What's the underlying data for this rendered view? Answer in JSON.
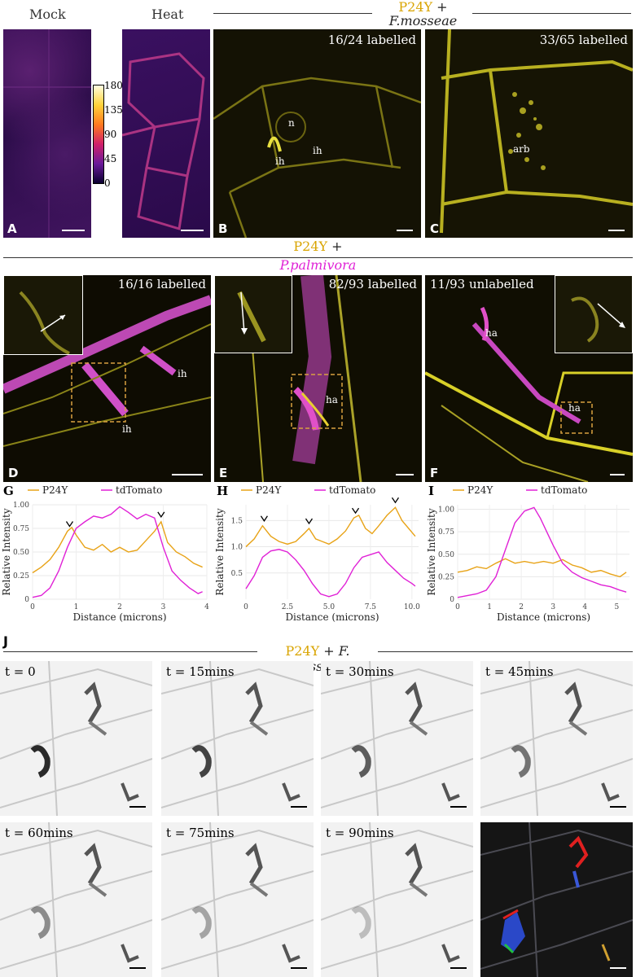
{
  "headers": {
    "mock": "Mock",
    "heat": "Heat",
    "top_p24y": "P24Y",
    "top_plus": " +",
    "top_fungus": "F.mosseae",
    "mid_p24y": "P24Y",
    "mid_plus": " +",
    "mid_oomycete": "P.palmivora",
    "j_p24y": "P24Y",
    "j_plus": " + ",
    "j_fungus": "F. mosseae"
  },
  "colorbar": {
    "ticks": [
      "180",
      "135",
      "90",
      "45",
      "0"
    ]
  },
  "panels": {
    "A": {
      "letter": "A"
    },
    "B": {
      "letter": "B",
      "count": "16/24 labelled",
      "labels": [
        "n",
        "ih",
        "ih"
      ]
    },
    "C": {
      "letter": "C",
      "count": "33/65 labelled",
      "labels": [
        "arb"
      ]
    },
    "D": {
      "letter": "D",
      "count": "16/16 labelled",
      "labels": [
        "ih",
        "ih"
      ]
    },
    "E": {
      "letter": "E",
      "count": "82/93 labelled",
      "labels": [
        "ha"
      ]
    },
    "F": {
      "letter": "F",
      "count": "11/93 unlabelled",
      "labels": [
        "ha",
        "ha"
      ]
    },
    "J": {
      "letter": "J"
    }
  },
  "timelapse": [
    "t = 0",
    "t = 15mins",
    "t = 30mins",
    "t = 45mins",
    "t = 60mins",
    "t = 75mins",
    "t = 90mins"
  ],
  "colors": {
    "p24y": "#e8a317",
    "tdtomato": "#e021d6",
    "yellow_fluor": "#d8d020",
    "magenta_fluor": "#d030c8"
  },
  "chart_data": [
    {
      "panel": "G",
      "type": "line",
      "xlabel": "Distance (microns)",
      "ylabel": "Relative Intensity",
      "xlim": [
        0,
        4
      ],
      "ylim": [
        0,
        1
      ],
      "xticks": [
        0,
        1,
        2,
        3,
        4
      ],
      "yticks": [
        0,
        0.25,
        0.5,
        0.75,
        1.0
      ],
      "ytick_labels": [
        "0",
        "0.25",
        "0.50",
        "0.75",
        "1.00"
      ],
      "peak_markers": [
        0.85,
        2.95
      ],
      "series": [
        {
          "name": "P24Y",
          "color": "#e8a317",
          "x": [
            0,
            0.2,
            0.4,
            0.6,
            0.8,
            0.9,
            1.0,
            1.2,
            1.4,
            1.6,
            1.8,
            2.0,
            2.2,
            2.4,
            2.6,
            2.8,
            2.95,
            3.1,
            3.3,
            3.5,
            3.7,
            3.9
          ],
          "y": [
            0.28,
            0.34,
            0.42,
            0.55,
            0.72,
            0.76,
            0.68,
            0.55,
            0.52,
            0.58,
            0.5,
            0.55,
            0.5,
            0.52,
            0.62,
            0.72,
            0.82,
            0.6,
            0.5,
            0.45,
            0.38,
            0.34
          ]
        },
        {
          "name": "tdTomato",
          "color": "#e021d6",
          "x": [
            0,
            0.2,
            0.4,
            0.6,
            0.8,
            1.0,
            1.2,
            1.4,
            1.6,
            1.8,
            2.0,
            2.2,
            2.4,
            2.6,
            2.8,
            3.0,
            3.2,
            3.4,
            3.6,
            3.8,
            3.9
          ],
          "y": [
            0.02,
            0.04,
            0.12,
            0.3,
            0.55,
            0.75,
            0.82,
            0.88,
            0.86,
            0.9,
            0.98,
            0.92,
            0.85,
            0.9,
            0.86,
            0.55,
            0.3,
            0.2,
            0.12,
            0.06,
            0.08
          ]
        }
      ]
    },
    {
      "panel": "H",
      "type": "line",
      "xlabel": "Distance (microns)",
      "ylabel": "Relative Intensity",
      "xlim": [
        0,
        10.4
      ],
      "ylim": [
        0,
        1.8
      ],
      "xticks": [
        0,
        2.5,
        5,
        7.5,
        10
      ],
      "xtick_labels": [
        "0",
        "2.5",
        "5.0",
        "7.5",
        "10.0"
      ],
      "yticks": [
        0.5,
        1.0,
        1.5
      ],
      "ytick_labels": [
        "0.5",
        "1.0",
        "1.5"
      ],
      "peak_markers": [
        1.1,
        3.8,
        6.6,
        9.0
      ],
      "series": [
        {
          "name": "P24Y",
          "color": "#e8a317",
          "x": [
            0,
            0.5,
            1.0,
            1.5,
            2.0,
            2.5,
            3.0,
            3.5,
            3.8,
            4.2,
            4.6,
            5.0,
            5.5,
            6.0,
            6.5,
            6.8,
            7.2,
            7.6,
            8.0,
            8.5,
            9.0,
            9.4,
            9.8,
            10.2
          ],
          "y": [
            1.0,
            1.15,
            1.4,
            1.2,
            1.1,
            1.05,
            1.1,
            1.25,
            1.35,
            1.15,
            1.1,
            1.05,
            1.15,
            1.3,
            1.55,
            1.6,
            1.35,
            1.25,
            1.4,
            1.6,
            1.75,
            1.5,
            1.35,
            1.2
          ]
        },
        {
          "name": "tdTomato",
          "color": "#e021d6",
          "x": [
            0,
            0.5,
            1.0,
            1.5,
            2.0,
            2.5,
            3.0,
            3.5,
            4.0,
            4.5,
            5.0,
            5.5,
            6.0,
            6.5,
            7.0,
            7.5,
            8.0,
            8.5,
            9.0,
            9.5,
            10.0,
            10.2
          ],
          "y": [
            0.2,
            0.45,
            0.8,
            0.92,
            0.95,
            0.9,
            0.75,
            0.55,
            0.3,
            0.1,
            0.05,
            0.1,
            0.3,
            0.6,
            0.8,
            0.85,
            0.9,
            0.7,
            0.55,
            0.4,
            0.3,
            0.25
          ]
        }
      ]
    },
    {
      "panel": "I",
      "type": "line",
      "xlabel": "Distance (microns)",
      "ylabel": "Relative Intensity",
      "xlim": [
        0,
        5.4
      ],
      "ylim": [
        0,
        1.05
      ],
      "xticks": [
        0,
        1,
        2,
        3,
        4,
        5
      ],
      "yticks": [
        0,
        0.25,
        0.5,
        0.75,
        1.0
      ],
      "ytick_labels": [
        "0",
        "0.25",
        "0.50",
        "0.75",
        "1.00"
      ],
      "series": [
        {
          "name": "P24Y",
          "color": "#e8a317",
          "x": [
            0,
            0.3,
            0.6,
            0.9,
            1.2,
            1.5,
            1.8,
            2.1,
            2.4,
            2.7,
            3.0,
            3.3,
            3.6,
            3.9,
            4.2,
            4.5,
            4.8,
            5.1,
            5.3
          ],
          "y": [
            0.3,
            0.32,
            0.36,
            0.34,
            0.4,
            0.45,
            0.4,
            0.42,
            0.4,
            0.42,
            0.4,
            0.44,
            0.38,
            0.35,
            0.3,
            0.32,
            0.28,
            0.25,
            0.3
          ]
        },
        {
          "name": "tdTomato",
          "color": "#e021d6",
          "x": [
            0,
            0.3,
            0.6,
            0.9,
            1.2,
            1.5,
            1.8,
            2.1,
            2.4,
            2.6,
            2.8,
            3.0,
            3.3,
            3.6,
            3.9,
            4.2,
            4.5,
            4.8,
            5.1,
            5.3
          ],
          "y": [
            0.02,
            0.04,
            0.06,
            0.1,
            0.25,
            0.55,
            0.85,
            0.98,
            1.02,
            0.9,
            0.75,
            0.6,
            0.4,
            0.3,
            0.24,
            0.2,
            0.16,
            0.14,
            0.1,
            0.08
          ]
        }
      ]
    }
  ]
}
